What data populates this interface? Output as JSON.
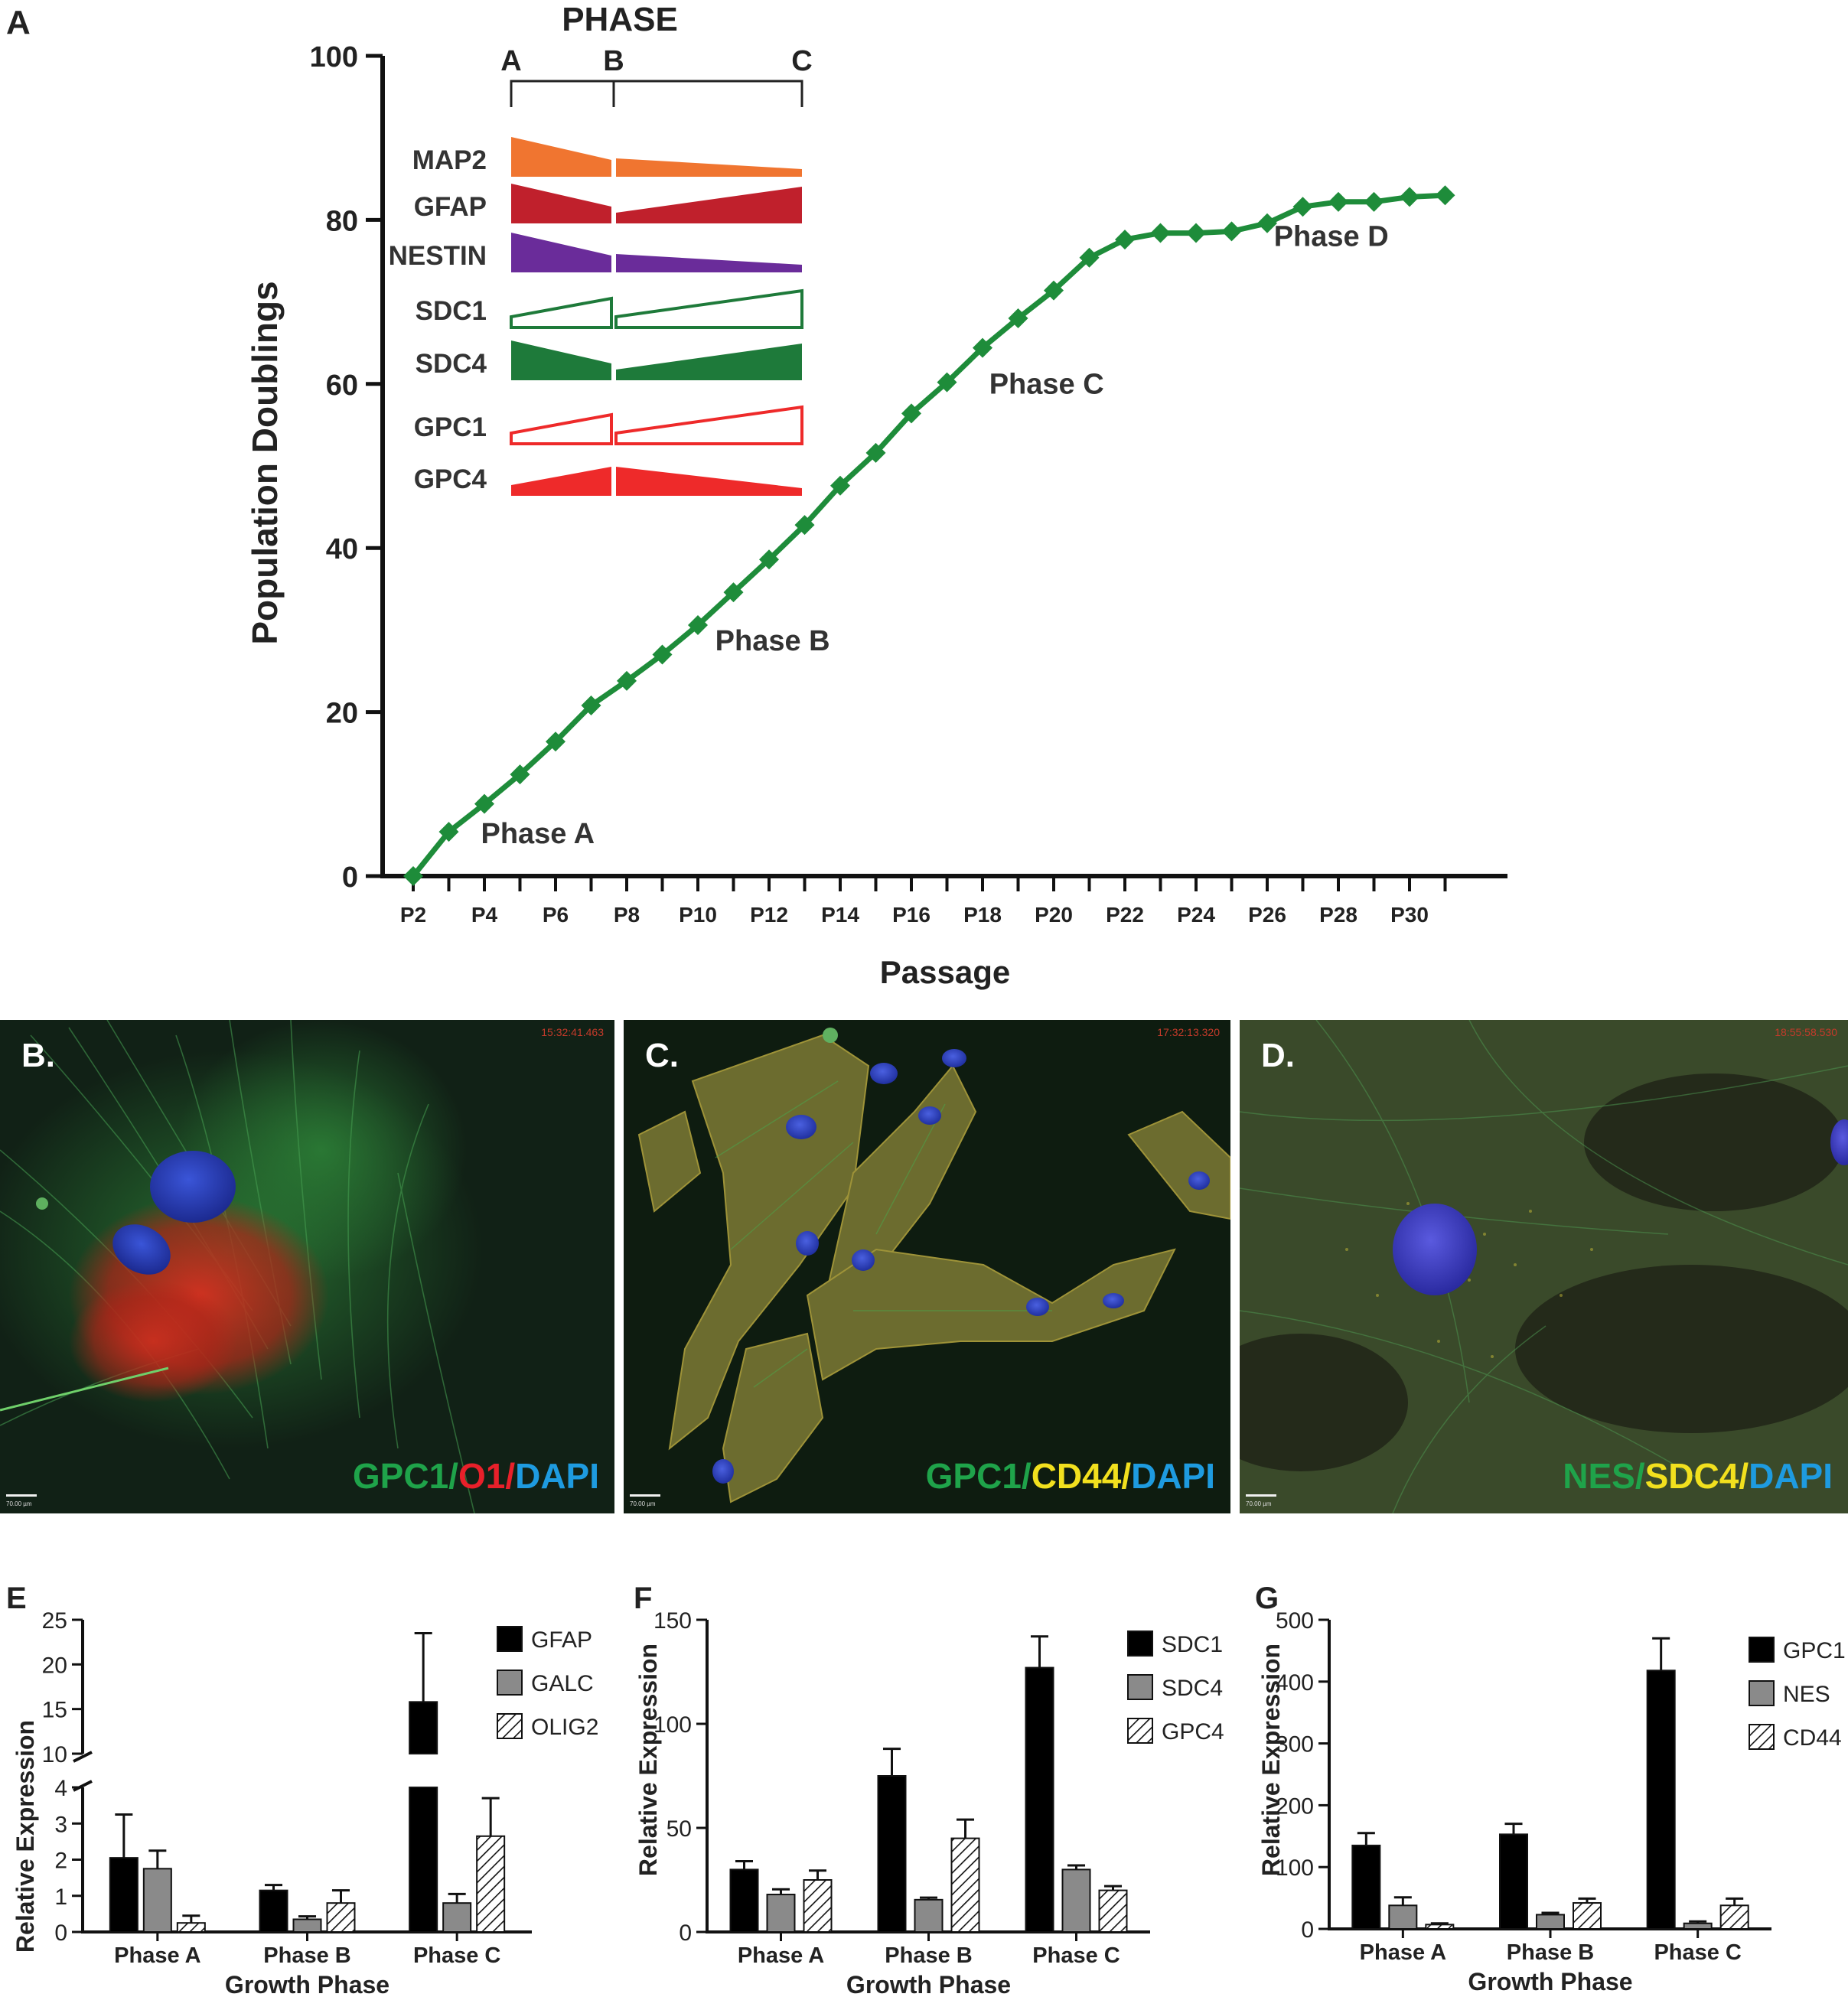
{
  "panel_labels": {
    "A": "A",
    "E": "E",
    "F": "F",
    "G": "G"
  },
  "phase_header": {
    "title": "PHASE",
    "A": "A",
    "B": "B",
    "C": "C"
  },
  "chart_data": [
    {
      "type": "line",
      "panel": "A",
      "xlabel": "Passage",
      "ylabel": "Population Doublings",
      "ylim": [
        0,
        100
      ],
      "yticks": [
        0,
        20,
        40,
        60,
        80,
        100
      ],
      "xtick_labels": [
        "P2",
        "P4",
        "P6",
        "P8",
        "P10",
        "P12",
        "P14",
        "P16",
        "P18",
        "P20",
        "P22",
        "P24",
        "P26",
        "P28",
        "P30"
      ],
      "x": [
        2,
        3,
        4,
        5,
        6,
        7,
        8,
        9,
        10,
        11,
        12,
        13,
        14,
        15,
        16,
        17,
        18,
        19,
        20,
        21,
        22,
        23,
        24,
        25,
        26,
        27,
        28,
        29,
        30,
        31
      ],
      "values": [
        0,
        5.4,
        8.8,
        12.4,
        16.4,
        20.8,
        23.8,
        27.0,
        30.6,
        34.6,
        38.6,
        42.8,
        47.6,
        51.6,
        56.4,
        60.2,
        64.4,
        68.0,
        71.4,
        75.4,
        77.6,
        78.4,
        78.4,
        78.6,
        79.6,
        81.6,
        82.2,
        82.2,
        82.8,
        83.0
      ],
      "color": "#1e8c3a",
      "annotations": [
        {
          "text": "Phase A",
          "x": 5.5,
          "y": 4
        },
        {
          "text": "Phase B",
          "x": 12.1,
          "y": 27.5
        },
        {
          "text": "Phase C",
          "x": 19.8,
          "y": 58.8
        },
        {
          "text": "Phase D",
          "x": 27.8,
          "y": 76.8
        }
      ],
      "inset_markers": [
        {
          "label": "MAP2",
          "color": "#f07530",
          "fill": "solid",
          "trend_A_to_B": "decreasing",
          "trend_B_to_C": "decreasing"
        },
        {
          "label": "GFAP",
          "color": "#c0202c",
          "fill": "solid",
          "trend_A_to_B": "decreasing",
          "trend_B_to_C": "increasing"
        },
        {
          "label": "NESTIN",
          "color": "#6a2c9a",
          "fill": "solid",
          "trend_A_to_B": "decreasing",
          "trend_B_to_C": "decreasing"
        },
        {
          "label": "SDC1",
          "color": "#1e7a3a",
          "fill": "outline",
          "trend_A_to_B": "increasing",
          "trend_B_to_C": "increasing"
        },
        {
          "label": "SDC4",
          "color": "#1e7a3a",
          "fill": "solid",
          "trend_A_to_B": "decreasing",
          "trend_B_to_C": "increasing"
        },
        {
          "label": "GPC1",
          "color": "#ee2a2a",
          "fill": "outline",
          "trend_A_to_B": "increasing",
          "trend_B_to_C": "increasing"
        },
        {
          "label": "GPC4",
          "color": "#ee2a2a",
          "fill": "solid",
          "trend_A_to_B": "increasing",
          "trend_B_to_C": "decreasing"
        }
      ]
    },
    {
      "type": "bar",
      "panel": "E",
      "xlabel": "Growth Phase",
      "ylabel": "Relative Expression",
      "broken_axis": true,
      "lower_ylim": [
        0,
        4
      ],
      "upper_ylim": [
        10,
        25
      ],
      "yticks_lower": [
        0,
        1,
        2,
        3,
        4
      ],
      "yticks_upper": [
        10,
        15,
        20,
        25
      ],
      "categories": [
        "Phase A",
        "Phase B",
        "Phase C"
      ],
      "series": [
        {
          "name": "GFAP",
          "values": [
            2.05,
            1.15,
            15.8
          ],
          "errors": [
            1.2,
            0.15,
            7.7
          ]
        },
        {
          "name": "GALC",
          "values": [
            1.75,
            0.35,
            0.8
          ],
          "errors": [
            0.5,
            0.08,
            0.25
          ]
        },
        {
          "name": "OLIG2",
          "values": [
            0.25,
            0.8,
            2.65
          ],
          "errors": [
            0.2,
            0.35,
            1.05
          ]
        }
      ]
    },
    {
      "type": "bar",
      "panel": "F",
      "xlabel": "Growth Phase",
      "ylabel": "Relative Expression",
      "ylim": [
        0,
        150
      ],
      "yticks": [
        0,
        50,
        100,
        150
      ],
      "categories": [
        "Phase A",
        "Phase B",
        "Phase C"
      ],
      "series": [
        {
          "name": "SDC1",
          "values": [
            30,
            75,
            127
          ],
          "errors": [
            4,
            13,
            15
          ]
        },
        {
          "name": "SDC4",
          "values": [
            18,
            15.5,
            30
          ],
          "errors": [
            2.5,
            1,
            2
          ]
        },
        {
          "name": "GPC4",
          "values": [
            25,
            45,
            20
          ],
          "errors": [
            4.5,
            9,
            2
          ]
        }
      ]
    },
    {
      "type": "bar",
      "panel": "G",
      "xlabel": "Growth Phase",
      "ylabel": "Relative Expression",
      "ylim": [
        0,
        500
      ],
      "yticks": [
        0,
        100,
        200,
        300,
        400,
        500
      ],
      "categories": [
        "Phase A",
        "Phase B",
        "Phase C"
      ],
      "series": [
        {
          "name": "GPC1",
          "values": [
            135,
            153,
            418
          ],
          "errors": [
            20,
            17,
            52
          ]
        },
        {
          "name": "NES",
          "values": [
            38,
            23,
            9
          ],
          "errors": [
            13,
            3,
            3
          ]
        },
        {
          "name": "CD44",
          "values": [
            7,
            42,
            38
          ],
          "errors": [
            2,
            7,
            11
          ]
        }
      ]
    }
  ],
  "micrographs": [
    {
      "letter": "B.",
      "stamp": "15:32:41.463",
      "scale": "70.00 µm",
      "caption": [
        {
          "text": "GPC1",
          "color": "#1fa34a"
        },
        {
          "text": "/",
          "color": "#1fa34a"
        },
        {
          "text": "O1",
          "color": "#e8202a"
        },
        {
          "text": "/",
          "color": "#e8202a"
        },
        {
          "text": "DAPI",
          "color": "#1e9be0"
        }
      ]
    },
    {
      "letter": "C.",
      "stamp": "17:32:13.320",
      "scale": "70.00 µm",
      "caption": [
        {
          "text": "GPC1",
          "color": "#1fa34a"
        },
        {
          "text": "/",
          "color": "#1fa34a"
        },
        {
          "text": "CD44",
          "color": "#f2e01e"
        },
        {
          "text": "/",
          "color": "#f2e01e"
        },
        {
          "text": "DAPI",
          "color": "#1e9be0"
        }
      ]
    },
    {
      "letter": "D.",
      "stamp": "18:55:58.530",
      "scale": "70.00 µm",
      "caption": [
        {
          "text": "NES",
          "color": "#1fa34a"
        },
        {
          "text": "/",
          "color": "#1fa34a"
        },
        {
          "text": "SDC4",
          "color": "#f2e01e"
        },
        {
          "text": "/",
          "color": "#f2e01e"
        },
        {
          "text": "DAPI",
          "color": "#1e9be0"
        }
      ]
    }
  ]
}
